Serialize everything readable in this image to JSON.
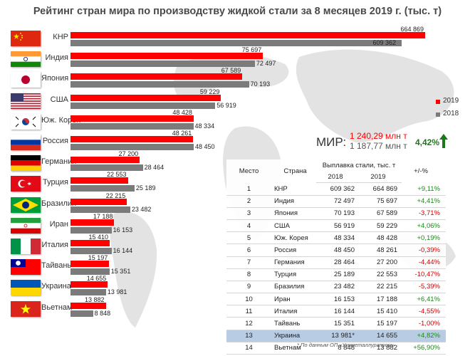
{
  "title": "Рейтинг стран мира по производству жидкой стали за 8 месяцев 2019 г. (тыс. т)",
  "colors": {
    "y2019": "#ff0000",
    "y2018": "#7b7b7b",
    "positive": "#1b8a1b",
    "negative": "#d40000",
    "highlight": "#b8cce4"
  },
  "legend": {
    "y2019": "2019",
    "y2018": "2018"
  },
  "world": {
    "label": "МИР:",
    "value_2019": "1 240,29 млн т",
    "value_2018": "1 187,77 млн т",
    "change": "4,42%",
    "change_icon": "up-arrow-icon"
  },
  "chart_data": {
    "type": "bar",
    "orientation": "horizontal",
    "categories": [
      "КНР",
      "Индия",
      "Япония",
      "США",
      "Юж. Корея",
      "Россия",
      "Германия",
      "Турция",
      "Бразилия",
      "Иран",
      "Италия",
      "Тайвань",
      "Украина",
      "Вьетнам"
    ],
    "series": [
      {
        "name": "2019",
        "values": [
          664869,
          75697,
          67589,
          59229,
          48428,
          48261,
          27200,
          22553,
          22215,
          17188,
          15410,
          15197,
          14655,
          13882
        ],
        "labels": [
          "664 869",
          "75 697",
          "67 589",
          "59 229",
          "48 428",
          "48 261",
          "27 200",
          "22 553",
          "22 215",
          "17 188",
          "15 410",
          "15 197",
          "14 655",
          "13 882"
        ]
      },
      {
        "name": "2018",
        "values": [
          609362,
          72497,
          70193,
          56919,
          48334,
          48450,
          28464,
          25189,
          23482,
          16153,
          16144,
          15351,
          13981,
          8848
        ],
        "labels": [
          "609 362",
          "72 497",
          "70 193",
          "56 919",
          "48 334",
          "48 450",
          "28 464",
          "25 189",
          "23 482",
          "16 153",
          "16 144",
          "15 351",
          "13 981",
          "8 848"
        ]
      }
    ],
    "axis_break": "China bars truncated",
    "flags": [
      "china-flag-icon",
      "india-flag-icon",
      "japan-flag-icon",
      "usa-flag-icon",
      "south-korea-flag-icon",
      "russia-flag-icon",
      "germany-flag-icon",
      "turkey-flag-icon",
      "brazil-flag-icon",
      "iran-flag-icon",
      "italy-flag-icon",
      "taiwan-flag-icon",
      "ukraine-flag-icon",
      "vietnam-flag-icon"
    ]
  },
  "table": {
    "headers": {
      "rank": "Место",
      "country": "Страна",
      "production": "Выплавка стали, тыс. т",
      "y2018": "2018",
      "y2019": "2019",
      "change": "+/-%"
    },
    "rows": [
      {
        "rank": "1",
        "country": "КНР",
        "v2018": "609 362",
        "v2019": "664 869",
        "change": "+9,11%",
        "sign": "pos"
      },
      {
        "rank": "2",
        "country": "Индия",
        "v2018": "72 497",
        "v2019": "75 697",
        "change": "+4,41%",
        "sign": "pos"
      },
      {
        "rank": "3",
        "country": "Япония",
        "v2018": "70 193",
        "v2019": "67 589",
        "change": "-3,71%",
        "sign": "neg"
      },
      {
        "rank": "4",
        "country": "США",
        "v2018": "56 919",
        "v2019": "59 229",
        "change": "+4,06%",
        "sign": "pos"
      },
      {
        "rank": "5",
        "country": "Юж. Корея",
        "v2018": "48 334",
        "v2019": "48 428",
        "change": "+0,19%",
        "sign": "pos"
      },
      {
        "rank": "6",
        "country": "Россия",
        "v2018": "48 450",
        "v2019": "48 261",
        "change": "-0,39%",
        "sign": "neg"
      },
      {
        "rank": "7",
        "country": "Германия",
        "v2018": "28 464",
        "v2019": "27 200",
        "change": "-4,44%",
        "sign": "neg"
      },
      {
        "rank": "8",
        "country": "Турция",
        "v2018": "25 189",
        "v2019": "22 553",
        "change": "-10,47%",
        "sign": "neg"
      },
      {
        "rank": "9",
        "country": "Бразилия",
        "v2018": "23 482",
        "v2019": "22 215",
        "change": "-5,39%",
        "sign": "neg"
      },
      {
        "rank": "10",
        "country": "Иран",
        "v2018": "16 153",
        "v2019": "17 188",
        "change": "+6,41%",
        "sign": "pos"
      },
      {
        "rank": "11",
        "country": "Италия",
        "v2018": "16 144",
        "v2019": "15 410",
        "change": "-4,55%",
        "sign": "neg"
      },
      {
        "rank": "12",
        "country": "Тайвань",
        "v2018": "15 351",
        "v2019": "15 197",
        "change": "-1,00%",
        "sign": "neg"
      },
      {
        "rank": "13",
        "country": "Украина",
        "v2018": "13 981*",
        "v2019": "14 655",
        "change": "+4,82%",
        "sign": "pos",
        "highlight": true
      },
      {
        "rank": "14",
        "country": "Вьетнам",
        "v2018": "8 848",
        "v2019": "13 882",
        "change": "+56,90%",
        "sign": "pos"
      }
    ]
  },
  "footnote": "* По данным ОП «Укрметаллургпром»"
}
